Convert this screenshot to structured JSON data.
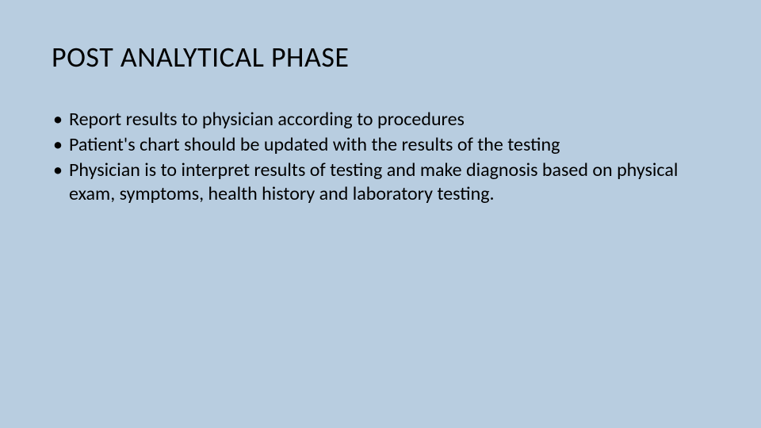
{
  "slide": {
    "background_color": "#b8cde0",
    "text_color": "#000000",
    "title": "POST ANALYTICAL PHASE",
    "title_fontsize": 36,
    "body_fontsize": 24,
    "bullets": [
      "Report results to physician according to procedures",
      "Patient's chart should be updated with the results of the testing",
      "Physician is to interpret results of testing and make diagnosis based on physical exam, symptoms, health history and laboratory testing."
    ]
  }
}
